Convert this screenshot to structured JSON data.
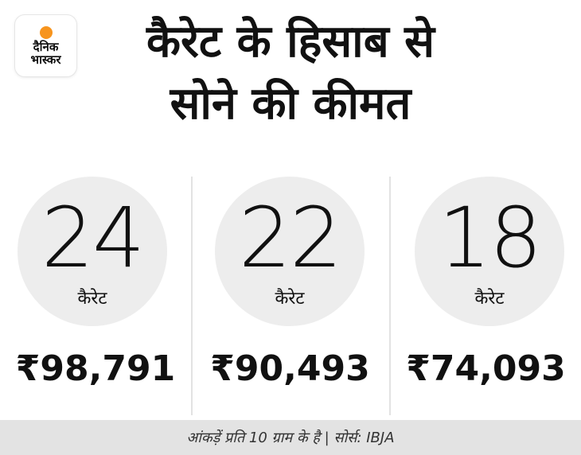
{
  "logo": {
    "line1": "दैनिक",
    "line2": "भास्कर",
    "accent_color": "#f7941d"
  },
  "title": {
    "line1": "कैरेट के हिसाब से",
    "line2": "सोने की कीमत"
  },
  "items": [
    {
      "karat": "24",
      "unit": "कैरेट",
      "price": "₹98,791"
    },
    {
      "karat": "22",
      "unit": "कैरेट",
      "price": "₹90,493"
    },
    {
      "karat": "18",
      "unit": "कैरेट",
      "price": "₹74,093"
    }
  ],
  "footer": {
    "note": "आंकड़ें प्रति 10 ग्राम के है | सोर्स: IBJA"
  }
}
